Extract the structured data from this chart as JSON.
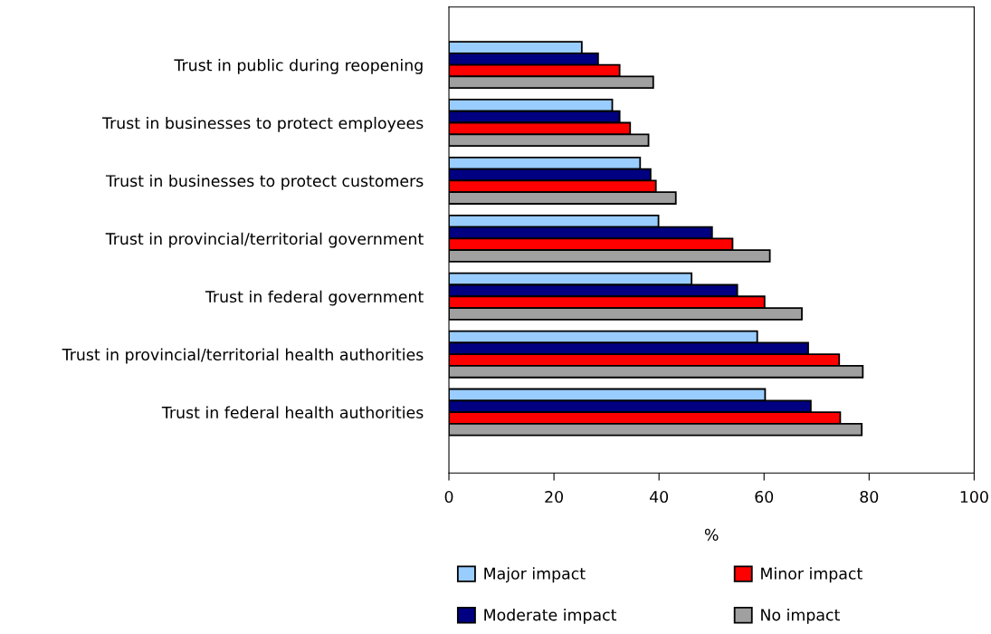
{
  "chart_data": {
    "type": "bar",
    "orientation": "horizontal",
    "xlabel": "%",
    "categories": [
      "Trust in public during reopening",
      "Trust in businesses to protect employees",
      "Trust in businesses to protect customers",
      "Trust in provincial/territorial government",
      "Trust in federal government",
      "Trust in provincial/territorial health authorities",
      "Trust in federal health authorities"
    ],
    "series": [
      {
        "name": "Major impact",
        "color": "#99ccff",
        "values": [
          25.3,
          31.1,
          36.4,
          39.9,
          46.2,
          58.7,
          60.2
        ]
      },
      {
        "name": "Moderate impact",
        "color": "#000080",
        "values": [
          28.4,
          32.5,
          38.4,
          50.1,
          54.9,
          68.4,
          68.9
        ]
      },
      {
        "name": "Minor impact",
        "color": "#ff0000",
        "values": [
          32.5,
          34.5,
          39.4,
          54.0,
          60.1,
          74.3,
          74.5
        ]
      },
      {
        "name": "No impact",
        "color": "#a0a0a0",
        "values": [
          38.9,
          38.0,
          43.2,
          61.1,
          67.2,
          78.8,
          78.6
        ]
      }
    ],
    "xlim": [
      0,
      100
    ],
    "xticks": [
      0,
      20,
      40,
      60,
      80,
      100
    ],
    "grid": false,
    "legend": "bottom"
  }
}
